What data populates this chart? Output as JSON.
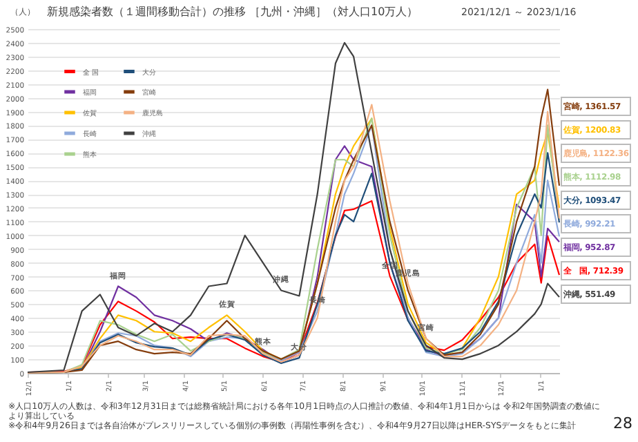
{
  "chart_data": {
    "type": "line",
    "title": "新規感染者数（１週間移動合計）の推移 ［九州・沖縄］（対人口10万人）",
    "subtitle": "2021/12/1 ～ 2023/1/16",
    "ylabel": "（人）",
    "x": [
      "2021-12-01",
      "2021-12-29",
      "2022-01-12",
      "2022-01-26",
      "2022-02-09",
      "2022-02-23",
      "2022-03-09",
      "2022-03-23",
      "2022-04-06",
      "2022-04-20",
      "2022-05-04",
      "2022-05-18",
      "2022-06-01",
      "2022-06-15",
      "2022-06-29",
      "2022-07-13",
      "2022-07-27",
      "2022-08-03",
      "2022-08-10",
      "2022-08-24",
      "2022-09-07",
      "2022-09-21",
      "2022-10-05",
      "2022-10-19",
      "2022-11-02",
      "2022-11-16",
      "2022-11-30",
      "2022-12-14",
      "2022-12-28",
      "2023-01-02",
      "2023-01-07",
      "2023-01-16"
    ],
    "series": [
      {
        "name": "全 国",
        "color": "#ff0000",
        "values": [
          5,
          10,
          50,
          350,
          520,
          450,
          370,
          250,
          260,
          250,
          250,
          180,
          120,
          80,
          150,
          510,
          990,
          1180,
          1190,
          1250,
          705,
          385,
          190,
          165,
          240,
          385,
          550,
          800,
          935,
          655,
          995,
          712.39
        ]
      },
      {
        "name": "福岡",
        "color": "#7030a0",
        "values": [
          2,
          5,
          30,
          300,
          630,
          550,
          420,
          380,
          320,
          230,
          290,
          250,
          170,
          80,
          130,
          700,
          1550,
          1650,
          1550,
          1500,
          800,
          400,
          170,
          120,
          150,
          250,
          400,
          1225,
          1100,
          700,
          1050,
          952.87
        ]
      },
      {
        "name": "佐賀",
        "color": "#ffc000",
        "values": [
          2,
          5,
          40,
          250,
          420,
          380,
          300,
          290,
          230,
          330,
          420,
          300,
          160,
          100,
          160,
          650,
          1300,
          1500,
          1650,
          1850,
          1050,
          500,
          220,
          130,
          180,
          400,
          700,
          1300,
          1400,
          1600,
          1750,
          1200.83
        ]
      },
      {
        "name": "長崎",
        "color": "#8faadc",
        "values": [
          2,
          5,
          30,
          230,
          290,
          270,
          200,
          180,
          120,
          230,
          260,
          250,
          140,
          90,
          150,
          450,
          1000,
          1300,
          1450,
          1800,
          900,
          400,
          150,
          120,
          140,
          250,
          400,
          800,
          1150,
          800,
          1400,
          992.21
        ]
      },
      {
        "name": "熊本",
        "color": "#a9d18e",
        "values": [
          2,
          5,
          60,
          380,
          350,
          280,
          230,
          280,
          160,
          230,
          280,
          250,
          150,
          100,
          170,
          900,
          1550,
          1550,
          1500,
          1850,
          1000,
          450,
          180,
          140,
          170,
          330,
          600,
          1200,
          1500,
          1000,
          1800,
          1112.98
        ]
      },
      {
        "name": "大分",
        "color": "#1f4e79",
        "values": [
          2,
          5,
          30,
          220,
          280,
          220,
          190,
          180,
          130,
          240,
          280,
          240,
          130,
          70,
          110,
          500,
          1000,
          1150,
          1100,
          1450,
          800,
          380,
          160,
          140,
          180,
          300,
          520,
          1000,
          1300,
          1200,
          1600,
          1093.47
        ]
      },
      {
        "name": "宮崎",
        "color": "#843c0c",
        "values": [
          2,
          5,
          20,
          200,
          230,
          170,
          140,
          150,
          140,
          250,
          380,
          250,
          160,
          100,
          160,
          650,
          1200,
          1400,
          1550,
          1800,
          1100,
          600,
          250,
          130,
          150,
          280,
          500,
          1100,
          1500,
          1850,
          2060,
          1361.57
        ]
      },
      {
        "name": "鹿児島",
        "color": "#f4b183",
        "values": [
          2,
          5,
          50,
          200,
          270,
          230,
          170,
          170,
          130,
          270,
          280,
          270,
          140,
          80,
          130,
          400,
          1100,
          1400,
          1500,
          1950,
          1250,
          650,
          250,
          120,
          120,
          200,
          350,
          600,
          1100,
          1300,
          1900,
          1122.36
        ]
      },
      {
        "name": "沖縄",
        "color": "#404040",
        "values": [
          5,
          20,
          450,
          570,
          330,
          270,
          360,
          300,
          420,
          630,
          650,
          1000,
          800,
          600,
          560,
          1300,
          2250,
          2400,
          2300,
          1600,
          900,
          450,
          200,
          110,
          100,
          140,
          200,
          300,
          430,
          500,
          650,
          551.49
        ]
      }
    ],
    "xlim": [
      "2021-12-01",
      "2023-01-16"
    ],
    "ylim": [
      0,
      2500
    ],
    "yticks": [
      0,
      100,
      200,
      300,
      400,
      500,
      600,
      700,
      800,
      900,
      1000,
      1100,
      1200,
      1300,
      1400,
      1500,
      1600,
      1700,
      1800,
      1900,
      2000,
      2100,
      2200,
      2300,
      2400,
      2500
    ],
    "xticks": [
      {
        "value": "2021-12-01",
        "label": "12/1"
      },
      {
        "value": "2022-01-01",
        "label": "1/1"
      },
      {
        "value": "2022-02-01",
        "label": "2/1"
      },
      {
        "value": "2022-03-01",
        "label": "3/1"
      },
      {
        "value": "2022-04-01",
        "label": "4/1"
      },
      {
        "value": "2022-05-01",
        "label": "5/1"
      },
      {
        "value": "2022-06-01",
        "label": "6/1"
      },
      {
        "value": "2022-07-01",
        "label": "7/1"
      },
      {
        "value": "2022-08-01",
        "label": "8/1"
      },
      {
        "value": "2022-09-01",
        "label": "9/1"
      },
      {
        "value": "2022-10-01",
        "label": "10/1"
      },
      {
        "value": "2022-11-01",
        "label": "11/1"
      },
      {
        "value": "2022-12-01",
        "label": "12/1"
      },
      {
        "value": "2023-01-01",
        "label": "1/1"
      }
    ],
    "grid": "y",
    "legend": "top left",
    "marker": "none",
    "line_style": "solid",
    "annotations": [
      {
        "text": "福岡",
        "x": "2022-02-09",
        "y": 630
      },
      {
        "text": "沖縄",
        "x": "2022-06-15",
        "y": 600
      },
      {
        "text": "佐賀",
        "x": "2022-05-04",
        "y": 420
      },
      {
        "text": "熊本",
        "x": "2022-06-01",
        "y": 150
      },
      {
        "text": "全国",
        "x": "2022-09-07",
        "y": 705
      },
      {
        "text": "鹿児島",
        "x": "2022-09-21",
        "y": 650
      },
      {
        "text": "長崎",
        "x": "2022-07-13",
        "y": 450
      },
      {
        "text": "宮崎",
        "x": "2022-10-05",
        "y": 250
      },
      {
        "text": "大分",
        "x": "2022-06-29",
        "y": 110
      },
      "宮崎, 1361.57",
      "佐賀, 1200.83",
      "鹿児島, 1122.36",
      "熊本, 1112.98",
      "大分, 1093.47",
      "長崎, 992.21",
      "福岡, 952.87",
      "全　国, 712.39",
      "沖縄, 551.49",
      "※人口10万人の人数は、令和3年12月31日までは総務省統計局における各年10月1日時点の人口推計の数値、令和4年1月1日からは 令和2年国勢調査の数値により算出している",
      "※令和4年9月26日までは各自治体がプレスリリースしている個別の事例数（再陽性事例を含む）、令和4年9月27日以降はHER-SYSデータをもとに集計",
      "28"
    ]
  }
}
